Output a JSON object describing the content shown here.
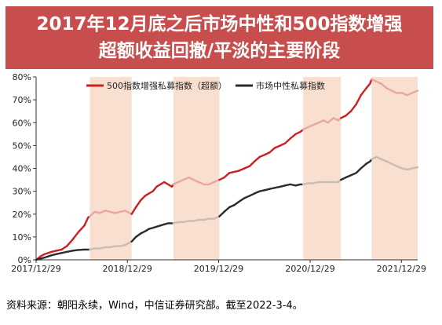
{
  "title": {
    "line1": "2017年12月底之后市场中性和500指数增强",
    "line2": "超额收益回撤/平淡的主要阶段"
  },
  "source": "资料来源：朝阳永续，Wind，中信证券研究部。截至2022-3-4。",
  "colors": {
    "title_bg": "#c84e4e",
    "series_500": "#cc1f1f",
    "series_500_shaded": "#e8a6a6",
    "series_neutral": "#2b2b2b",
    "series_neutral_shaded": "#c9bcb5",
    "band": "#f8dfcf"
  },
  "chart_data": {
    "type": "line",
    "ylim": [
      0,
      80
    ],
    "yticks": [
      0,
      10,
      20,
      30,
      40,
      50,
      60,
      70,
      80
    ],
    "ytick_labels": [
      "0%",
      "10%",
      "20%",
      "30%",
      "40%",
      "50%",
      "60%",
      "70%",
      "80%"
    ],
    "xlim": [
      "2017-12-29",
      "2022-03-04"
    ],
    "xticks": [
      "2017-12-29",
      "2018-12-29",
      "2019-12-29",
      "2020-12-29",
      "2021-12-29"
    ],
    "xtick_labels": [
      "2017/12/29",
      "2018/12/29",
      "2019/12/29",
      "2020/12/29",
      "2021/12/29"
    ],
    "grid": false,
    "legend_position": "top",
    "shaded_periods": [
      [
        "2018-08-01",
        "2019-01-15"
      ],
      [
        "2019-07-01",
        "2020-01-01"
      ],
      [
        "2020-12-01",
        "2021-05-01"
      ],
      [
        "2021-09-01",
        "2022-03-04"
      ]
    ],
    "series": [
      {
        "name": "500指数增强私募指数（超额）",
        "x": [
          "2017-12-29",
          "2018-01-15",
          "2018-02-01",
          "2018-02-15",
          "2018-03-01",
          "2018-03-20",
          "2018-04-10",
          "2018-05-01",
          "2018-05-25",
          "2018-06-15",
          "2018-07-10",
          "2018-07-25",
          "2018-08-01",
          "2018-08-20",
          "2018-09-10",
          "2018-10-01",
          "2018-10-20",
          "2018-11-10",
          "2018-12-01",
          "2018-12-20",
          "2019-01-15",
          "2019-02-01",
          "2019-02-20",
          "2019-03-10",
          "2019-03-25",
          "2019-04-10",
          "2019-04-25",
          "2019-05-10",
          "2019-05-25",
          "2019-06-10",
          "2019-06-25",
          "2019-07-01",
          "2019-07-20",
          "2019-08-10",
          "2019-09-01",
          "2019-09-20",
          "2019-10-10",
          "2019-11-01",
          "2019-11-20",
          "2019-12-10",
          "2020-01-01",
          "2020-01-20",
          "2020-02-10",
          "2020-03-01",
          "2020-03-20",
          "2020-04-10",
          "2020-05-01",
          "2020-05-20",
          "2020-06-10",
          "2020-07-01",
          "2020-07-20",
          "2020-08-10",
          "2020-09-01",
          "2020-09-20",
          "2020-10-10",
          "2020-11-01",
          "2020-11-20",
          "2020-12-01",
          "2020-12-20",
          "2021-01-10",
          "2021-02-01",
          "2021-02-20",
          "2021-03-10",
          "2021-04-01",
          "2021-04-20",
          "2021-05-01",
          "2021-05-20",
          "2021-06-10",
          "2021-07-01",
          "2021-07-20",
          "2021-08-10",
          "2021-08-25",
          "2021-09-01",
          "2021-09-20",
          "2021-10-10",
          "2021-11-01",
          "2021-11-20",
          "2021-12-10",
          "2022-01-01",
          "2022-01-20",
          "2022-02-10",
          "2022-03-04"
        ],
        "values": [
          0,
          1.5,
          2.5,
          3,
          3.5,
          4,
          4.5,
          6,
          9,
          12,
          15,
          18.5,
          19,
          21,
          20.5,
          21.5,
          21,
          20.5,
          21,
          21.5,
          20,
          23,
          26,
          28,
          29,
          30,
          32,
          33,
          34,
          33,
          32,
          33,
          34,
          35,
          36,
          35,
          34,
          33,
          33,
          34,
          35,
          36,
          38,
          38.5,
          39,
          40,
          41,
          43,
          45,
          46,
          47,
          49,
          50,
          51,
          53,
          55,
          56,
          57,
          58,
          59,
          60,
          61,
          60,
          62,
          61,
          62,
          63,
          65,
          68,
          72,
          75,
          77,
          79,
          78,
          77,
          75,
          74,
          73,
          73,
          72,
          73,
          74
        ]
      },
      {
        "name": "市场中性私募指数",
        "x": [
          "2017-12-29",
          "2018-01-15",
          "2018-02-01",
          "2018-02-15",
          "2018-03-01",
          "2018-03-20",
          "2018-04-10",
          "2018-05-01",
          "2018-05-25",
          "2018-06-15",
          "2018-07-10",
          "2018-07-25",
          "2018-08-01",
          "2018-08-20",
          "2018-09-10",
          "2018-10-01",
          "2018-10-20",
          "2018-11-10",
          "2018-12-01",
          "2018-12-20",
          "2019-01-15",
          "2019-02-01",
          "2019-02-20",
          "2019-03-10",
          "2019-03-25",
          "2019-04-10",
          "2019-04-25",
          "2019-05-10",
          "2019-05-25",
          "2019-06-10",
          "2019-06-25",
          "2019-07-01",
          "2019-07-20",
          "2019-08-10",
          "2019-09-01",
          "2019-09-20",
          "2019-10-10",
          "2019-11-01",
          "2019-11-20",
          "2019-12-10",
          "2020-01-01",
          "2020-01-20",
          "2020-02-10",
          "2020-03-01",
          "2020-03-20",
          "2020-04-10",
          "2020-05-01",
          "2020-05-20",
          "2020-06-10",
          "2020-07-01",
          "2020-07-20",
          "2020-08-10",
          "2020-09-01",
          "2020-09-20",
          "2020-10-10",
          "2020-11-01",
          "2020-11-20",
          "2020-12-01",
          "2020-12-20",
          "2021-01-10",
          "2021-02-01",
          "2021-02-20",
          "2021-03-10",
          "2021-04-01",
          "2021-04-20",
          "2021-05-01",
          "2021-05-20",
          "2021-06-10",
          "2021-07-01",
          "2021-07-20",
          "2021-08-10",
          "2021-08-25",
          "2021-09-01",
          "2021-09-20",
          "2021-10-10",
          "2021-11-01",
          "2021-11-20",
          "2021-12-10",
          "2022-01-01",
          "2022-01-20",
          "2022-02-10",
          "2022-03-04"
        ],
        "values": [
          0,
          0.5,
          1,
          1.5,
          2,
          2.5,
          3,
          3.5,
          4,
          4.3,
          4.5,
          4.5,
          4.5,
          5,
          5,
          5.5,
          5.5,
          6,
          6,
          6.5,
          8,
          10,
          11.5,
          12.5,
          13.5,
          14,
          14.5,
          15,
          15.5,
          16,
          16,
          16,
          16.5,
          16.5,
          17,
          17,
          17.5,
          17.5,
          18,
          18,
          19,
          21,
          23,
          24,
          25.5,
          27,
          28,
          29,
          30,
          30.5,
          31,
          31.5,
          32,
          32.5,
          33,
          32.5,
          33,
          33,
          33.5,
          33.5,
          34,
          34,
          34,
          34,
          34,
          35,
          36,
          37,
          38,
          40,
          42,
          43,
          44,
          45,
          44,
          43,
          42,
          41,
          40,
          39.5,
          40,
          40.5
        ]
      }
    ]
  }
}
